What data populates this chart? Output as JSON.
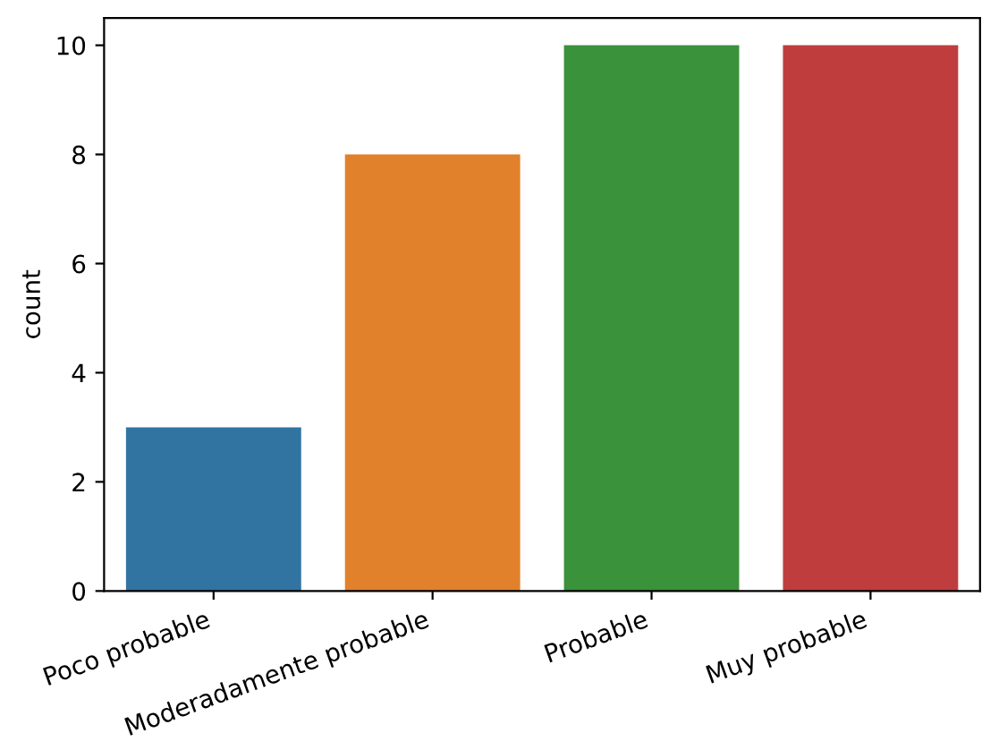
{
  "chart_data": {
    "type": "bar",
    "ylabel": "count",
    "categories": [
      "Poco probable",
      "Moderadamente probable",
      "Probable",
      "Muy probable"
    ],
    "values": [
      3,
      8,
      10,
      10
    ],
    "colors": [
      "#3274a1",
      "#e1812c",
      "#3a923a",
      "#c03d3e"
    ],
    "ylim": [
      0,
      10.5
    ],
    "yticks": [
      0,
      2,
      4,
      6,
      8,
      10
    ],
    "grid": false
  }
}
